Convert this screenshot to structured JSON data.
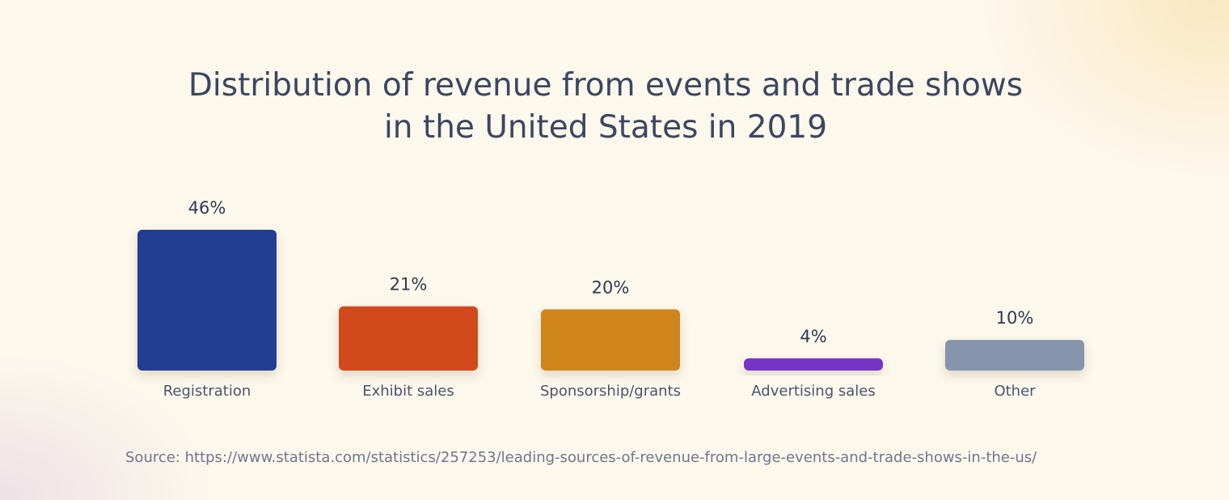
{
  "title_line1": "Distribution of revenue from events and trade shows",
  "title_line2": "in the United States in 2019",
  "source": "Source: https://www.statista.com/statistics/257253/leading-sources-of-revenue-from-large-events-and-trade-shows-in-the-us/",
  "chart_data": {
    "type": "bar",
    "title": "Distribution of revenue from events and trade shows in the United States in 2019",
    "categories": [
      "Registration",
      "Exhibit sales",
      "Sponsorship/grants",
      "Advertising sales",
      "Other"
    ],
    "values": [
      46,
      21,
      20,
      4,
      10
    ],
    "value_labels": [
      "46%",
      "21%",
      "20%",
      "4%",
      "10%"
    ],
    "unit": "%",
    "colors": [
      "#213e92",
      "#d24a1e",
      "#d0841e",
      "#7436c4",
      "#8595ad"
    ],
    "ylim": [
      0,
      46
    ],
    "grid": false,
    "legend": "none"
  }
}
